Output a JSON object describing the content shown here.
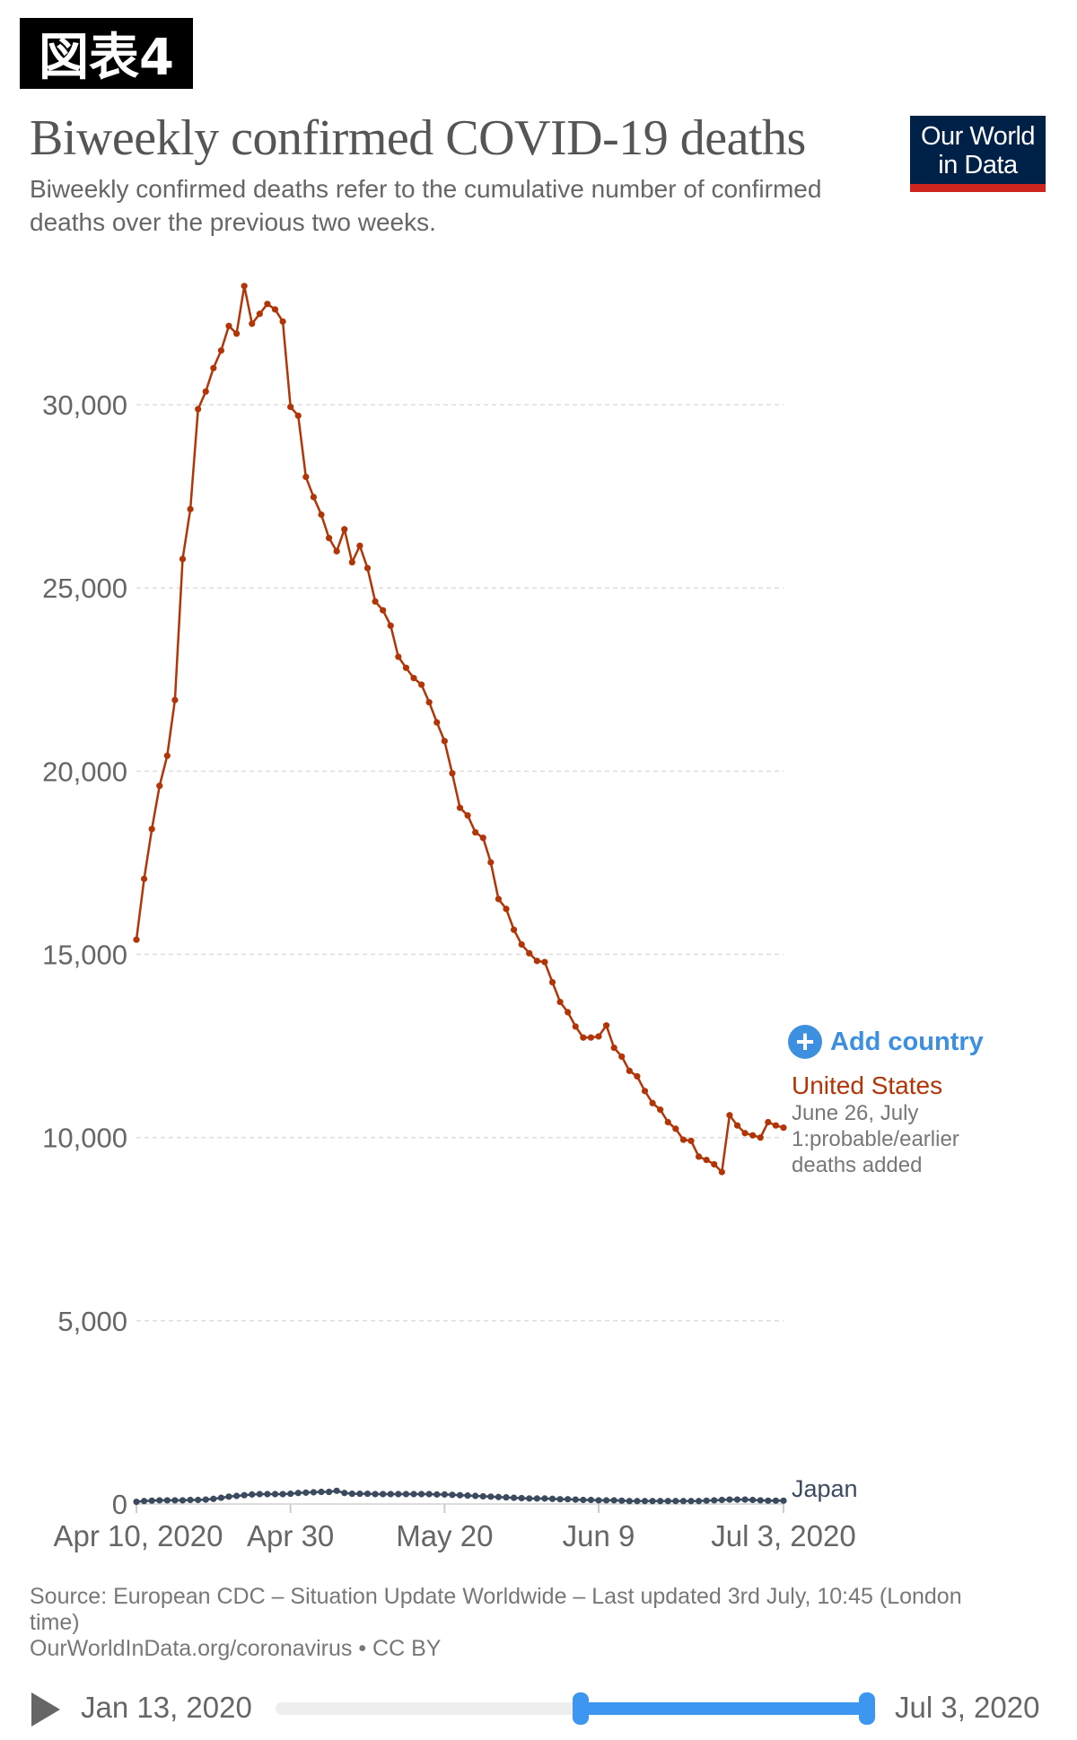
{
  "figure_label": "図表4",
  "header": {
    "title": "Biweekly confirmed COVID-19 deaths",
    "subtitle": "Biweekly confirmed deaths refer to the cumulative number of confirmed deaths over the previous two weeks.",
    "logo_line1": "Our World",
    "logo_line2": "in Data"
  },
  "controls": {
    "add_country": "Add country",
    "add_icon": "plus-circle-icon"
  },
  "colors": {
    "us": "#b13507",
    "japan": "#3b4a5e",
    "accent": "#3d8fe0",
    "logo_bg": "#002147",
    "logo_bar": "#ce261e"
  },
  "chart_data": {
    "type": "line",
    "title": "Biweekly confirmed COVID-19 deaths",
    "x_start": "2020-04-10",
    "x_end": "2020-07-03",
    "x_tick_labels": [
      "Apr 10, 2020",
      "Apr 30",
      "May 20",
      "Jun 9",
      "Jul 3, 2020"
    ],
    "x_tick_dates": [
      "2020-04-10",
      "2020-04-30",
      "2020-05-20",
      "2020-06-09",
      "2020-07-03"
    ],
    "y_ticks": [
      0,
      5000,
      10000,
      15000,
      20000,
      25000,
      30000
    ],
    "y_tick_labels": [
      "0",
      "5,000",
      "10,000",
      "15,000",
      "20,000",
      "25,000",
      "30,000"
    ],
    "ylim": [
      0,
      33500
    ],
    "grid": true,
    "series": [
      {
        "name": "United States",
        "annotation": "June 26, July 1:probable/earlier deaths added",
        "values": [
          15400,
          17060,
          18420,
          19600,
          20420,
          21940,
          25790,
          27150,
          29880,
          30360,
          31000,
          31480,
          32150,
          31940,
          33240,
          32210,
          32480,
          32750,
          32600,
          32270,
          29940,
          29700,
          28030,
          27480,
          27000,
          26360,
          26000,
          26600,
          25700,
          26150,
          25540,
          24630,
          24390,
          23970,
          23120,
          22820,
          22540,
          22360,
          21880,
          21330,
          20820,
          19940,
          19000,
          18790,
          18330,
          18180,
          17510,
          16510,
          16240,
          15670,
          15270,
          15030,
          14820,
          14790,
          14240,
          13700,
          13420,
          13030,
          12730,
          12730,
          12760,
          13060,
          12450,
          12210,
          11820,
          11670,
          11270,
          10940,
          10760,
          10420,
          10240,
          9940,
          9910,
          9480,
          9390,
          9270,
          9060,
          10610,
          10330,
          10120,
          10060,
          10000,
          10420,
          10330,
          10270
        ]
      },
      {
        "name": "Japan",
        "values": [
          60,
          80,
          90,
          100,
          100,
          100,
          100,
          110,
          110,
          120,
          140,
          170,
          200,
          220,
          240,
          260,
          270,
          270,
          270,
          270,
          280,
          300,
          310,
          320,
          330,
          330,
          360,
          300,
          280,
          280,
          280,
          270,
          270,
          270,
          270,
          270,
          270,
          270,
          270,
          260,
          260,
          250,
          240,
          230,
          220,
          210,
          200,
          190,
          180,
          170,
          160,
          150,
          150,
          150,
          140,
          130,
          130,
          120,
          110,
          110,
          100,
          100,
          100,
          90,
          80,
          80,
          80,
          80,
          80,
          80,
          80,
          80,
          80,
          80,
          90,
          100,
          110,
          120,
          120,
          120,
          110,
          100,
          90,
          90,
          90
        ]
      }
    ]
  },
  "source": {
    "line1": "Source: European CDC – Situation Update Worldwide – Last updated 3rd July, 10:45 (London time)",
    "line2": "OurWorldInData.org/coronavirus • CC BY"
  },
  "timeline": {
    "play_icon": "play-icon",
    "start_label": "Jan 13, 2020",
    "end_label": "Jul 3, 2020",
    "range_start_fraction": 0.51,
    "range_end_fraction": 0.99
  }
}
